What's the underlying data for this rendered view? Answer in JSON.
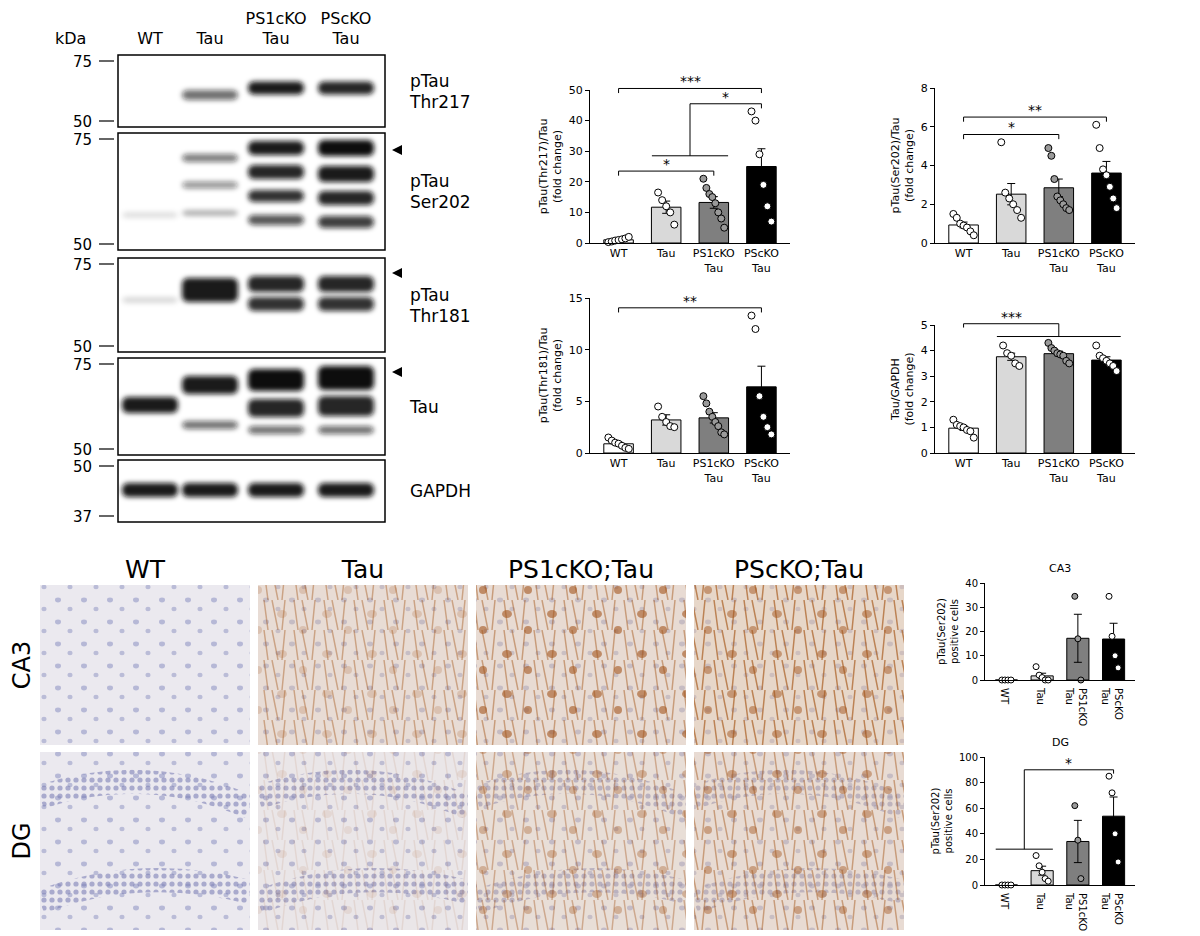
{
  "blot": {
    "unit_label": "kDa",
    "lanes": [
      "WT",
      "Tau",
      "PS1cKO Tau",
      "PScKO Tau"
    ],
    "panels": [
      {
        "label": "pTau Thr217",
        "markers": [
          75,
          50
        ]
      },
      {
        "label": "pTau Ser202",
        "markers": [
          75,
          50
        ]
      },
      {
        "label": "pTau Thr181",
        "markers": [
          75,
          50
        ]
      },
      {
        "label": "Tau",
        "markers": [
          75,
          50
        ]
      },
      {
        "label": "GAPDH",
        "markers": [
          50,
          37
        ]
      }
    ]
  },
  "ihc": {
    "columns": [
      "WT",
      "Tau",
      "PS1cKO;Tau",
      "PScKO;Tau"
    ],
    "rows": [
      "CA3",
      "DG"
    ]
  },
  "chart_data": [
    {
      "type": "bar",
      "ylabel": [
        "pTau(Thr217)/Tau",
        "(fold change)"
      ],
      "categories": [
        "WT",
        "Tau",
        "PS1cKO Tau",
        "PScKO Tau"
      ],
      "values": [
        1.04,
        11.7,
        13.25,
        25.0
      ],
      "errors": [
        0.23,
        2.0,
        1.9,
        5.8
      ],
      "points": [
        [
          0.3,
          0.5,
          0.8,
          1.0,
          1.2,
          1.5,
          2.0
        ],
        [
          16.5,
          14,
          12,
          10,
          6
        ],
        [
          21,
          18,
          16,
          15,
          13,
          10,
          8,
          5
        ],
        [
          43,
          40,
          29,
          19,
          12,
          7
        ]
      ],
      "colors": [
        "#ffffff",
        "#d9d9d9",
        "#7f7f7f",
        "#000000"
      ],
      "ylim": [
        0,
        50
      ],
      "yticks": [
        0,
        10,
        20,
        30,
        40,
        50
      ],
      "comparisons": [
        {
          "from": [
            0
          ],
          "to": [
            2
          ],
          "label": "*"
        },
        {
          "from": [
            1,
            2
          ],
          "to": [
            3
          ],
          "label": "*"
        },
        {
          "from": [
            0
          ],
          "to": [
            3
          ],
          "label": "***"
        }
      ]
    },
    {
      "type": "bar",
      "ylabel": [
        "pTau(Ser202)/Tau",
        "(fold change)"
      ],
      "categories": [
        "WT",
        "Tau",
        "PS1cKO Tau",
        "PScKO Tau"
      ],
      "values": [
        0.93,
        2.52,
        2.85,
        3.61
      ],
      "errors": [
        0.15,
        0.55,
        0.45,
        0.6
      ],
      "points": [
        [
          1.5,
          1.3,
          1.0,
          0.9,
          0.8,
          0.6,
          0.4
        ],
        [
          5.2,
          2.6,
          2.3,
          2.0,
          1.7,
          1.3
        ],
        [
          4.9,
          4.5,
          3.3,
          2.4,
          2.2,
          2.0,
          1.8,
          1.7
        ],
        [
          6.1,
          4.9,
          3.8,
          3.5,
          2.9,
          2.3,
          1.8
        ]
      ],
      "colors": [
        "#ffffff",
        "#d9d9d9",
        "#7f7f7f",
        "#000000"
      ],
      "ylim": [
        0,
        8
      ],
      "yticks": [
        0,
        2,
        4,
        6,
        8
      ],
      "comparisons": [
        {
          "from": [
            0
          ],
          "to": [
            2
          ],
          "label": "*"
        },
        {
          "from": [
            0
          ],
          "to": [
            3
          ],
          "label": "**"
        }
      ]
    },
    {
      "type": "bar",
      "ylabel": [
        "pTau(Thr181)/Tau",
        "(fold change)"
      ],
      "categories": [
        "WT",
        "Tau",
        "PS1cKO Tau",
        "PScKO Tau"
      ],
      "values": [
        0.89,
        3.2,
        3.4,
        6.4
      ],
      "errors": [
        0.15,
        0.5,
        0.5,
        2.0
      ],
      "points": [
        [
          1.5,
          1.2,
          1.0,
          0.9,
          0.7,
          0.5,
          0.4
        ],
        [
          4.5,
          3.5,
          3.0,
          2.6,
          2.5
        ],
        [
          5.5,
          4.8,
          4.0,
          3.5,
          3.0,
          2.6,
          2.0,
          1.8
        ],
        [
          13.3,
          12,
          5.5,
          3.5,
          2.5,
          1.8
        ]
      ],
      "colors": [
        "#ffffff",
        "#d9d9d9",
        "#7f7f7f",
        "#000000"
      ],
      "ylim": [
        0,
        15
      ],
      "yticks": [
        0,
        5,
        10,
        15
      ],
      "comparisons": [
        {
          "from": [
            0
          ],
          "to": [
            3
          ],
          "label": "**"
        }
      ]
    },
    {
      "type": "bar",
      "ylabel": [
        "Tau/GAPDH",
        "(fold change)"
      ],
      "categories": [
        "WT",
        "Tau",
        "PS1cKO Tau",
        "PScKO Tau"
      ],
      "values": [
        0.97,
        3.76,
        3.88,
        3.63
      ],
      "errors": [
        0.09,
        0.14,
        0.1,
        0.13
      ],
      "points": [
        [
          1.3,
          1.1,
          1.05,
          1.0,
          0.9,
          0.85,
          0.6
        ],
        [
          4.2,
          3.9,
          3.8,
          3.5,
          3.4
        ],
        [
          4.3,
          4.1,
          4.0,
          3.9,
          3.85,
          3.8,
          3.6,
          3.5
        ],
        [
          4.2,
          3.8,
          3.7,
          3.6,
          3.5,
          3.4,
          3.2
        ]
      ],
      "colors": [
        "#ffffff",
        "#d9d9d9",
        "#7f7f7f",
        "#000000"
      ],
      "ylim": [
        0,
        5
      ],
      "yticks": [
        0,
        1,
        2,
        3,
        4,
        5
      ],
      "comparisons": [
        {
          "from": [
            0
          ],
          "to": [
            1,
            2,
            3
          ],
          "label": "***"
        }
      ]
    },
    {
      "type": "bar",
      "title": "CA3",
      "ylabel": [
        "pTau(Ser202)",
        "positive cells"
      ],
      "categories": [
        "WT",
        "Tau",
        "PS1cKO Tau",
        "PScKO Tau"
      ],
      "values": [
        0,
        1.7,
        17.2,
        16.9
      ],
      "errors": [
        0,
        1.1,
        9.9,
        6.5
      ],
      "points": [
        [
          0,
          0,
          0,
          0
        ],
        [
          5.5,
          2,
          1,
          0,
          0
        ],
        [
          34.5,
          17,
          0
        ],
        [
          34.5,
          18,
          10,
          5
        ]
      ],
      "colors": [
        "#ffffff",
        "#d9d9d9",
        "#7f7f7f",
        "#000000"
      ],
      "ylim": [
        0,
        40
      ],
      "yticks": [
        0,
        10,
        20,
        30,
        40
      ],
      "comparisons": []
    },
    {
      "type": "bar",
      "title": "DG",
      "ylabel": [
        "pTau(Ser202)",
        "positive cells"
      ],
      "categories": [
        "WT",
        "Tau",
        "PS1cKO Tau",
        "PScKO Tau"
      ],
      "values": [
        0,
        11.2,
        34.0,
        53.75
      ],
      "errors": [
        0,
        3.5,
        16.5,
        15.0
      ],
      "points": [
        [
          0,
          0,
          0,
          0
        ],
        [
          23,
          15,
          10,
          5,
          3
        ],
        [
          62,
          35,
          5
        ],
        [
          85,
          72,
          40,
          18
        ]
      ],
      "colors": [
        "#ffffff",
        "#d9d9d9",
        "#7f7f7f",
        "#000000"
      ],
      "ylim": [
        0,
        100
      ],
      "yticks": [
        0,
        20,
        40,
        60,
        80,
        100
      ],
      "comparisons": [
        {
          "from": [
            0,
            1
          ],
          "to": [
            3
          ],
          "label": "*"
        }
      ]
    }
  ]
}
